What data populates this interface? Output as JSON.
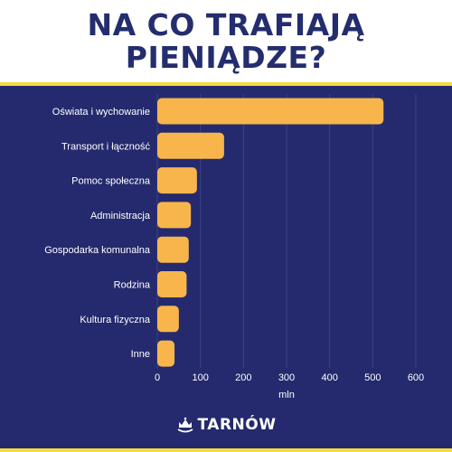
{
  "header": {
    "title_line1": "NA CO TRAFIAJĄ",
    "title_line2": "PIENIĄDZE?"
  },
  "logo": {
    "text": "TARNÓW"
  },
  "colors": {
    "title": "#242d6d",
    "panel": "#242a6d",
    "stripe": "#f3dc3c",
    "bar": "#f7b54c",
    "grid": "#3c4484"
  },
  "chart_data": {
    "type": "bar",
    "orientation": "horizontal",
    "title": "NA CO TRAFIAJĄ PIENIĄDZE?",
    "categories": [
      "Oświata i wychowanie",
      "Transport i łączność",
      "Pomoc społeczna",
      "Administracja",
      "Gospodarka komunalna",
      "Rodzina",
      "Kultura fizyczna",
      "Inne"
    ],
    "values": [
      525,
      155,
      92,
      78,
      73,
      68,
      50,
      40
    ],
    "xlabel": "mln",
    "ylabel": "",
    "xlim": [
      0,
      600
    ],
    "xticks": [
      0,
      100,
      200,
      300,
      400,
      500,
      600
    ],
    "grid": true,
    "legend": "none"
  }
}
